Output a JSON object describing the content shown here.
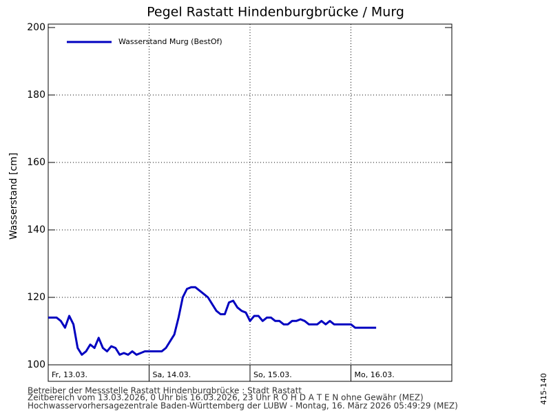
{
  "chart_data": {
    "type": "line",
    "title": "Pegel Rastatt Hindenburgbrücke / Murg",
    "y_label": "Wasserstand [cm]",
    "x": [
      0,
      1,
      2,
      3,
      4,
      5,
      6,
      7,
      8,
      9,
      10,
      11,
      12,
      13,
      14,
      15,
      16,
      17,
      18,
      19,
      20,
      21,
      22,
      23,
      24,
      25,
      26,
      27,
      28,
      29,
      30,
      31,
      32,
      33,
      34,
      35,
      36,
      37,
      38,
      39,
      40,
      41,
      42,
      43,
      44,
      45,
      46,
      47,
      48,
      49,
      50,
      51,
      52,
      53,
      54,
      55,
      56,
      57,
      58,
      59,
      60,
      61,
      62,
      63,
      64,
      65,
      66,
      67,
      68,
      69,
      70,
      71,
      72,
      73,
      74,
      75,
      76,
      77,
      78
    ],
    "series": [
      {
        "name": "Wasserstand Murg (BestOf)",
        "color": "#0000c0",
        "values": [
          114,
          114,
          114,
          113,
          111,
          114.5,
          112,
          105,
          103,
          104,
          106,
          105,
          108,
          105,
          104,
          105.5,
          105,
          103,
          103.5,
          103,
          104,
          103,
          103.5,
          104,
          104,
          104,
          104,
          104,
          105,
          107,
          109,
          114,
          120,
          122.5,
          123,
          123,
          122,
          121,
          120,
          118,
          116,
          115,
          115,
          118.5,
          119,
          117,
          116,
          115.5,
          113,
          114.5,
          114.5,
          113,
          114,
          114,
          113,
          113,
          112,
          112,
          113,
          113,
          113.5,
          113,
          112,
          112,
          112,
          113,
          112,
          113,
          112,
          112,
          112,
          112,
          112,
          111,
          111,
          111,
          111,
          111,
          111
        ]
      }
    ],
    "xlim": [
      0,
      96
    ],
    "xticks": [
      {
        "value": 0,
        "label": "Fr, 13.03."
      },
      {
        "value": 24,
        "label": "Sa, 14.03."
      },
      {
        "value": 48,
        "label": "So, 15.03."
      },
      {
        "value": 72,
        "label": "Mo, 16.03."
      }
    ],
    "ylim": [
      100,
      200
    ],
    "yticks": [
      100,
      120,
      140,
      160,
      180,
      200
    ],
    "grid": true,
    "legend": "upper left",
    "footer": [
      "Betreiber der Messstelle Rastatt Hindenburgbrücke : Stadt Rastatt",
      "Zeitbereich vom 13.03.2026, 0 Uhr bis 16.03.2026, 23 Uhr    R O H D A T E N ohne Gewähr (MEZ)",
      "Hochwasservorhersagezentrale Baden-Württemberg der LUBW - Montag, 16. März 2026 05:49:29 (MEZ)"
    ],
    "code": "415-140"
  }
}
